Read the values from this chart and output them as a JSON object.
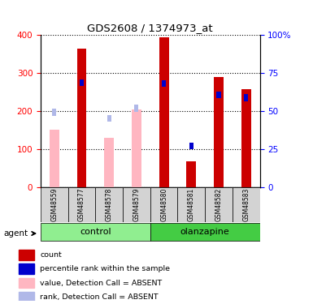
{
  "title": "GDS2608 / 1374973_at",
  "samples": [
    "GSM48559",
    "GSM48577",
    "GSM48578",
    "GSM48579",
    "GSM48580",
    "GSM48581",
    "GSM48582",
    "GSM48583"
  ],
  "count_values": [
    null,
    365,
    null,
    null,
    393,
    67,
    290,
    258
  ],
  "rank_values": [
    null,
    275,
    null,
    null,
    272,
    108,
    243,
    235
  ],
  "absent_value_values": [
    150,
    null,
    130,
    205,
    null,
    null,
    null,
    null
  ],
  "absent_rank_values": [
    197,
    null,
    180,
    207,
    null,
    null,
    null,
    null
  ],
  "ylim": [
    0,
    400
  ],
  "y2lim": [
    0,
    100
  ],
  "yticks": [
    0,
    100,
    200,
    300,
    400
  ],
  "y2ticks": [
    0,
    25,
    50,
    75,
    100
  ],
  "y2tick_labels": [
    "0",
    "25",
    "50",
    "75",
    "100%"
  ],
  "count_color": "#cc0000",
  "rank_color": "#0000cc",
  "absent_value_color": "#ffb6c1",
  "absent_rank_color": "#b0b8e8",
  "control_color": "#90ee90",
  "olanzapine_color": "#44cc44",
  "legend_items": [
    {
      "label": "count",
      "color": "#cc0000"
    },
    {
      "label": "percentile rank within the sample",
      "color": "#0000cc"
    },
    {
      "label": "value, Detection Call = ABSENT",
      "color": "#ffb6c1"
    },
    {
      "label": "rank, Detection Call = ABSENT",
      "color": "#b0b8e8"
    }
  ]
}
